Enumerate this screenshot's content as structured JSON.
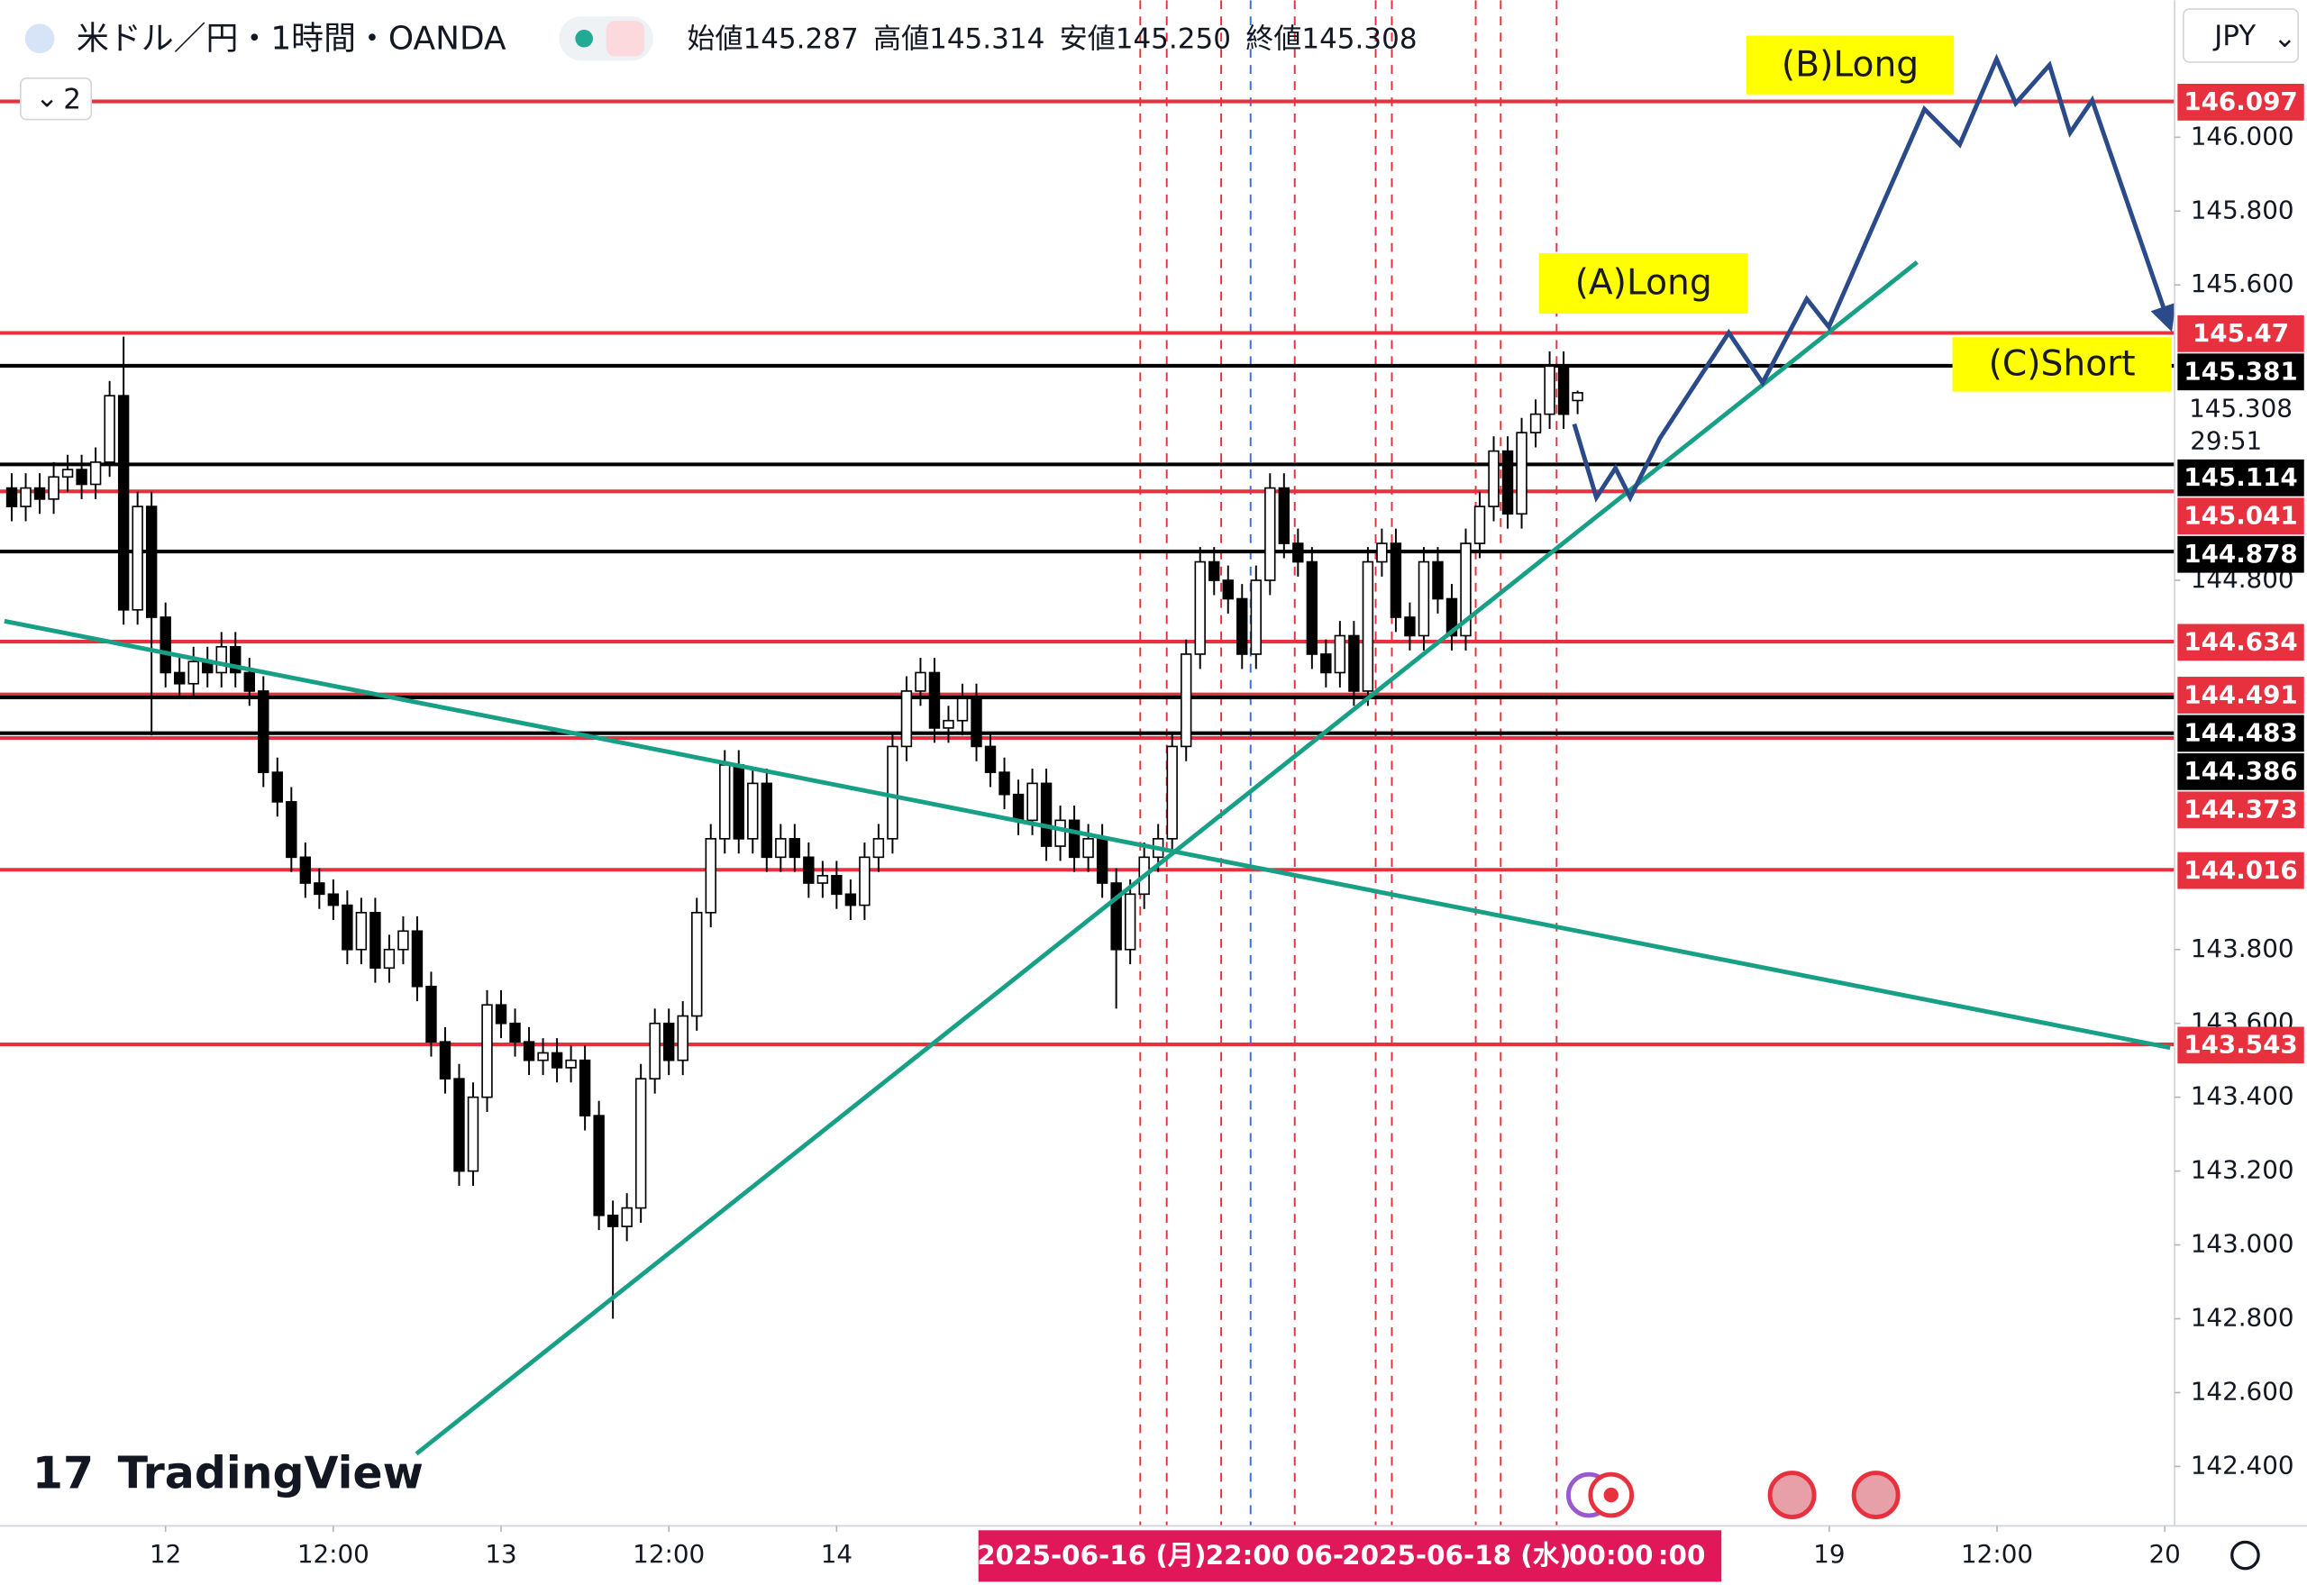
{
  "header": {
    "symbol": "米ドル／円・1時間・OANDA",
    "ohlc": [
      "始値145.287",
      "高値145.314",
      "安値145.250",
      "終値145.308"
    ],
    "badge": "2",
    "currency": "JPY",
    "logo": "TradingView"
  },
  "chart_data": {
    "type": "candlestick",
    "open": [
      145.05,
      145.0,
      145.05,
      145.02,
      145.08,
      145.1,
      145.06,
      145.12,
      145.3,
      144.72,
      145.0,
      144.7,
      144.55,
      144.52,
      144.58,
      144.55,
      144.62,
      144.55,
      144.5,
      144.28,
      144.2,
      144.05,
      143.98,
      143.95,
      143.92,
      143.8,
      143.9,
      143.75,
      143.8,
      143.85,
      143.7,
      143.55,
      143.45,
      143.2,
      143.4,
      143.65,
      143.6,
      143.55,
      143.5,
      143.52,
      143.48,
      143.5,
      143.35,
      143.08,
      143.05,
      143.1,
      143.45,
      143.6,
      143.5,
      143.62,
      143.9,
      144.1,
      144.3,
      144.1,
      144.25,
      144.05,
      144.1,
      144.05,
      143.98,
      144.0,
      143.95,
      143.92,
      144.05,
      144.1,
      144.35,
      144.5,
      144.55,
      144.4,
      144.42,
      144.48,
      144.35,
      144.28,
      144.22,
      144.15,
      144.25,
      144.08,
      144.15,
      144.05,
      144.1,
      143.98,
      143.8,
      143.95,
      144.05,
      144.1,
      144.35,
      144.6,
      144.85,
      144.8,
      144.75,
      144.6,
      144.8,
      145.05,
      144.9,
      144.85,
      144.6,
      144.55,
      144.65,
      144.5,
      144.85,
      144.9,
      144.7,
      144.65,
      144.85,
      144.75,
      144.65,
      144.9,
      145.0,
      145.15,
      144.98,
      145.2,
      145.25,
      145.38,
      145.287
    ],
    "high": [
      145.09,
      145.09,
      145.09,
      145.12,
      145.14,
      145.14,
      145.16,
      145.34,
      145.46,
      145.04,
      145.04,
      144.74,
      144.59,
      144.62,
      144.62,
      144.66,
      144.66,
      144.59,
      144.54,
      144.32,
      144.24,
      144.09,
      144.02,
      143.99,
      143.96,
      143.94,
      143.94,
      143.84,
      143.89,
      143.89,
      143.74,
      143.59,
      143.49,
      143.44,
      143.69,
      143.69,
      143.64,
      143.59,
      143.56,
      143.56,
      143.54,
      143.54,
      143.39,
      143.12,
      143.14,
      143.49,
      143.64,
      143.64,
      143.66,
      143.94,
      144.14,
      144.34,
      144.34,
      144.29,
      144.29,
      144.14,
      144.14,
      144.09,
      144.04,
      144.04,
      143.99,
      144.09,
      144.14,
      144.39,
      144.54,
      144.59,
      144.59,
      144.46,
      144.52,
      144.52,
      144.39,
      144.32,
      144.26,
      144.29,
      144.29,
      144.19,
      144.19,
      144.14,
      144.14,
      144.02,
      143.99,
      144.09,
      144.14,
      144.39,
      144.64,
      144.89,
      144.89,
      144.84,
      144.79,
      144.84,
      145.09,
      145.09,
      144.94,
      144.89,
      144.64,
      144.69,
      144.69,
      144.89,
      144.94,
      144.94,
      144.74,
      144.89,
      144.89,
      144.79,
      144.94,
      145.04,
      145.19,
      145.19,
      145.24,
      145.29,
      145.42,
      145.42,
      145.314
    ],
    "low": [
      144.96,
      144.96,
      144.98,
      144.98,
      145.04,
      145.02,
      145.02,
      145.08,
      144.68,
      144.68,
      144.38,
      144.51,
      144.48,
      144.48,
      144.51,
      144.51,
      144.51,
      144.46,
      144.24,
      144.16,
      144.01,
      143.94,
      143.91,
      143.88,
      143.76,
      143.76,
      143.71,
      143.71,
      143.76,
      143.66,
      143.51,
      143.41,
      143.16,
      143.16,
      143.36,
      143.56,
      143.51,
      143.46,
      143.46,
      143.44,
      143.44,
      143.31,
      143.04,
      142.8,
      143.01,
      143.06,
      143.41,
      143.46,
      143.46,
      143.58,
      143.86,
      144.06,
      144.06,
      144.06,
      144.01,
      144.01,
      144.01,
      143.94,
      143.94,
      143.91,
      143.88,
      143.88,
      144.01,
      144.06,
      144.31,
      144.46,
      144.36,
      144.36,
      144.38,
      144.31,
      144.24,
      144.18,
      144.11,
      144.11,
      144.04,
      144.04,
      144.01,
      144.01,
      143.94,
      143.64,
      143.76,
      143.91,
      144.01,
      144.06,
      144.31,
      144.56,
      144.76,
      144.71,
      144.56,
      144.56,
      144.76,
      144.86,
      144.81,
      144.56,
      144.51,
      144.51,
      144.46,
      144.46,
      144.81,
      144.66,
      144.61,
      144.61,
      144.71,
      144.61,
      144.61,
      144.86,
      144.96,
      144.94,
      144.94,
      145.16,
      145.21,
      145.21,
      145.25
    ],
    "close": [
      145.0,
      145.05,
      145.02,
      145.08,
      145.1,
      145.06,
      145.12,
      145.3,
      144.72,
      145.0,
      144.7,
      144.55,
      144.52,
      144.58,
      144.55,
      144.62,
      144.55,
      144.5,
      144.28,
      144.2,
      144.05,
      143.98,
      143.95,
      143.92,
      143.8,
      143.9,
      143.75,
      143.8,
      143.85,
      143.7,
      143.55,
      143.45,
      143.2,
      143.4,
      143.65,
      143.6,
      143.55,
      143.5,
      143.52,
      143.48,
      143.5,
      143.35,
      143.08,
      143.05,
      143.1,
      143.45,
      143.6,
      143.5,
      143.62,
      143.9,
      144.1,
      144.3,
      144.1,
      144.25,
      144.05,
      144.1,
      144.05,
      143.98,
      144.0,
      143.95,
      143.92,
      144.05,
      144.1,
      144.35,
      144.5,
      144.55,
      144.4,
      144.42,
      144.48,
      144.35,
      144.28,
      144.22,
      144.15,
      144.25,
      144.08,
      144.15,
      144.05,
      144.1,
      143.98,
      143.8,
      143.95,
      144.05,
      144.1,
      144.35,
      144.6,
      144.85,
      144.8,
      144.75,
      144.6,
      144.8,
      145.05,
      144.9,
      144.85,
      144.6,
      144.55,
      144.65,
      144.5,
      144.85,
      144.9,
      144.7,
      144.65,
      144.85,
      144.75,
      144.65,
      144.9,
      145.0,
      145.15,
      144.98,
      145.2,
      145.25,
      145.38,
      145.25,
      145.308
    ],
    "up_color": "#ffffff",
    "down_color": "#000000",
    "xlim": [
      -0.84,
      154.7
    ],
    "xticks": [
      {
        "value": 11,
        "label": "12"
      },
      {
        "value": 23,
        "label": "12:00"
      },
      {
        "value": 35,
        "label": "13"
      },
      {
        "value": 47,
        "label": "12:00"
      },
      {
        "value": 59,
        "label": "14"
      },
      {
        "value": 130,
        "label": "19"
      },
      {
        "value": 142,
        "label": "12:00"
      },
      {
        "value": 154,
        "label": "20"
      }
    ],
    "ylim": [
      142.239,
      146.371
    ],
    "yticks": [
      {
        "value": 142.4,
        "label": "142.400"
      },
      {
        "value": 142.6,
        "label": "142.600"
      },
      {
        "value": 142.8,
        "label": "142.800"
      },
      {
        "value": 143.0,
        "label": "143.000"
      },
      {
        "value": 143.2,
        "label": "143.200"
      },
      {
        "value": 143.4,
        "label": "143.400"
      },
      {
        "value": 143.6,
        "label": "143.600"
      },
      {
        "value": 143.8,
        "label": "143.800"
      },
      {
        "value": 144.8,
        "label": "144.800"
      },
      {
        "value": 145.6,
        "label": "145.600"
      },
      {
        "value": 145.8,
        "label": "145.800"
      },
      {
        "value": 146.0,
        "label": "146.000"
      }
    ],
    "grid": false,
    "levels": [
      {
        "value": 146.097,
        "color": "#e8313f"
      },
      {
        "value": 145.47,
        "color": "#e8313f"
      },
      {
        "value": 145.381,
        "color": "#000000"
      },
      {
        "value": 145.114,
        "color": "#000000"
      },
      {
        "value": 145.041,
        "color": "#e8313f"
      },
      {
        "value": 144.878,
        "color": "#000000"
      },
      {
        "value": 144.634,
        "color": "#e8313f"
      },
      {
        "value": 144.491,
        "color": "#e8313f"
      },
      {
        "value": 144.483,
        "color": "#000000"
      },
      {
        "value": 144.386,
        "color": "#000000"
      },
      {
        "value": 144.373,
        "color": "#e8313f"
      },
      {
        "value": 144.016,
        "color": "#e8313f"
      },
      {
        "value": 143.543,
        "color": "#e8313f"
      }
    ],
    "last_price": 145.308,
    "countdown": "29:51",
    "annotations": [
      "(A)Long",
      "(B)Long",
      "(C)Short"
    ],
    "crosshair_labels": [
      "2025-06-16 (月)",
      "22:00",
      "06-",
      "2025-06-18 (水)",
      "00:00",
      ":00"
    ]
  }
}
